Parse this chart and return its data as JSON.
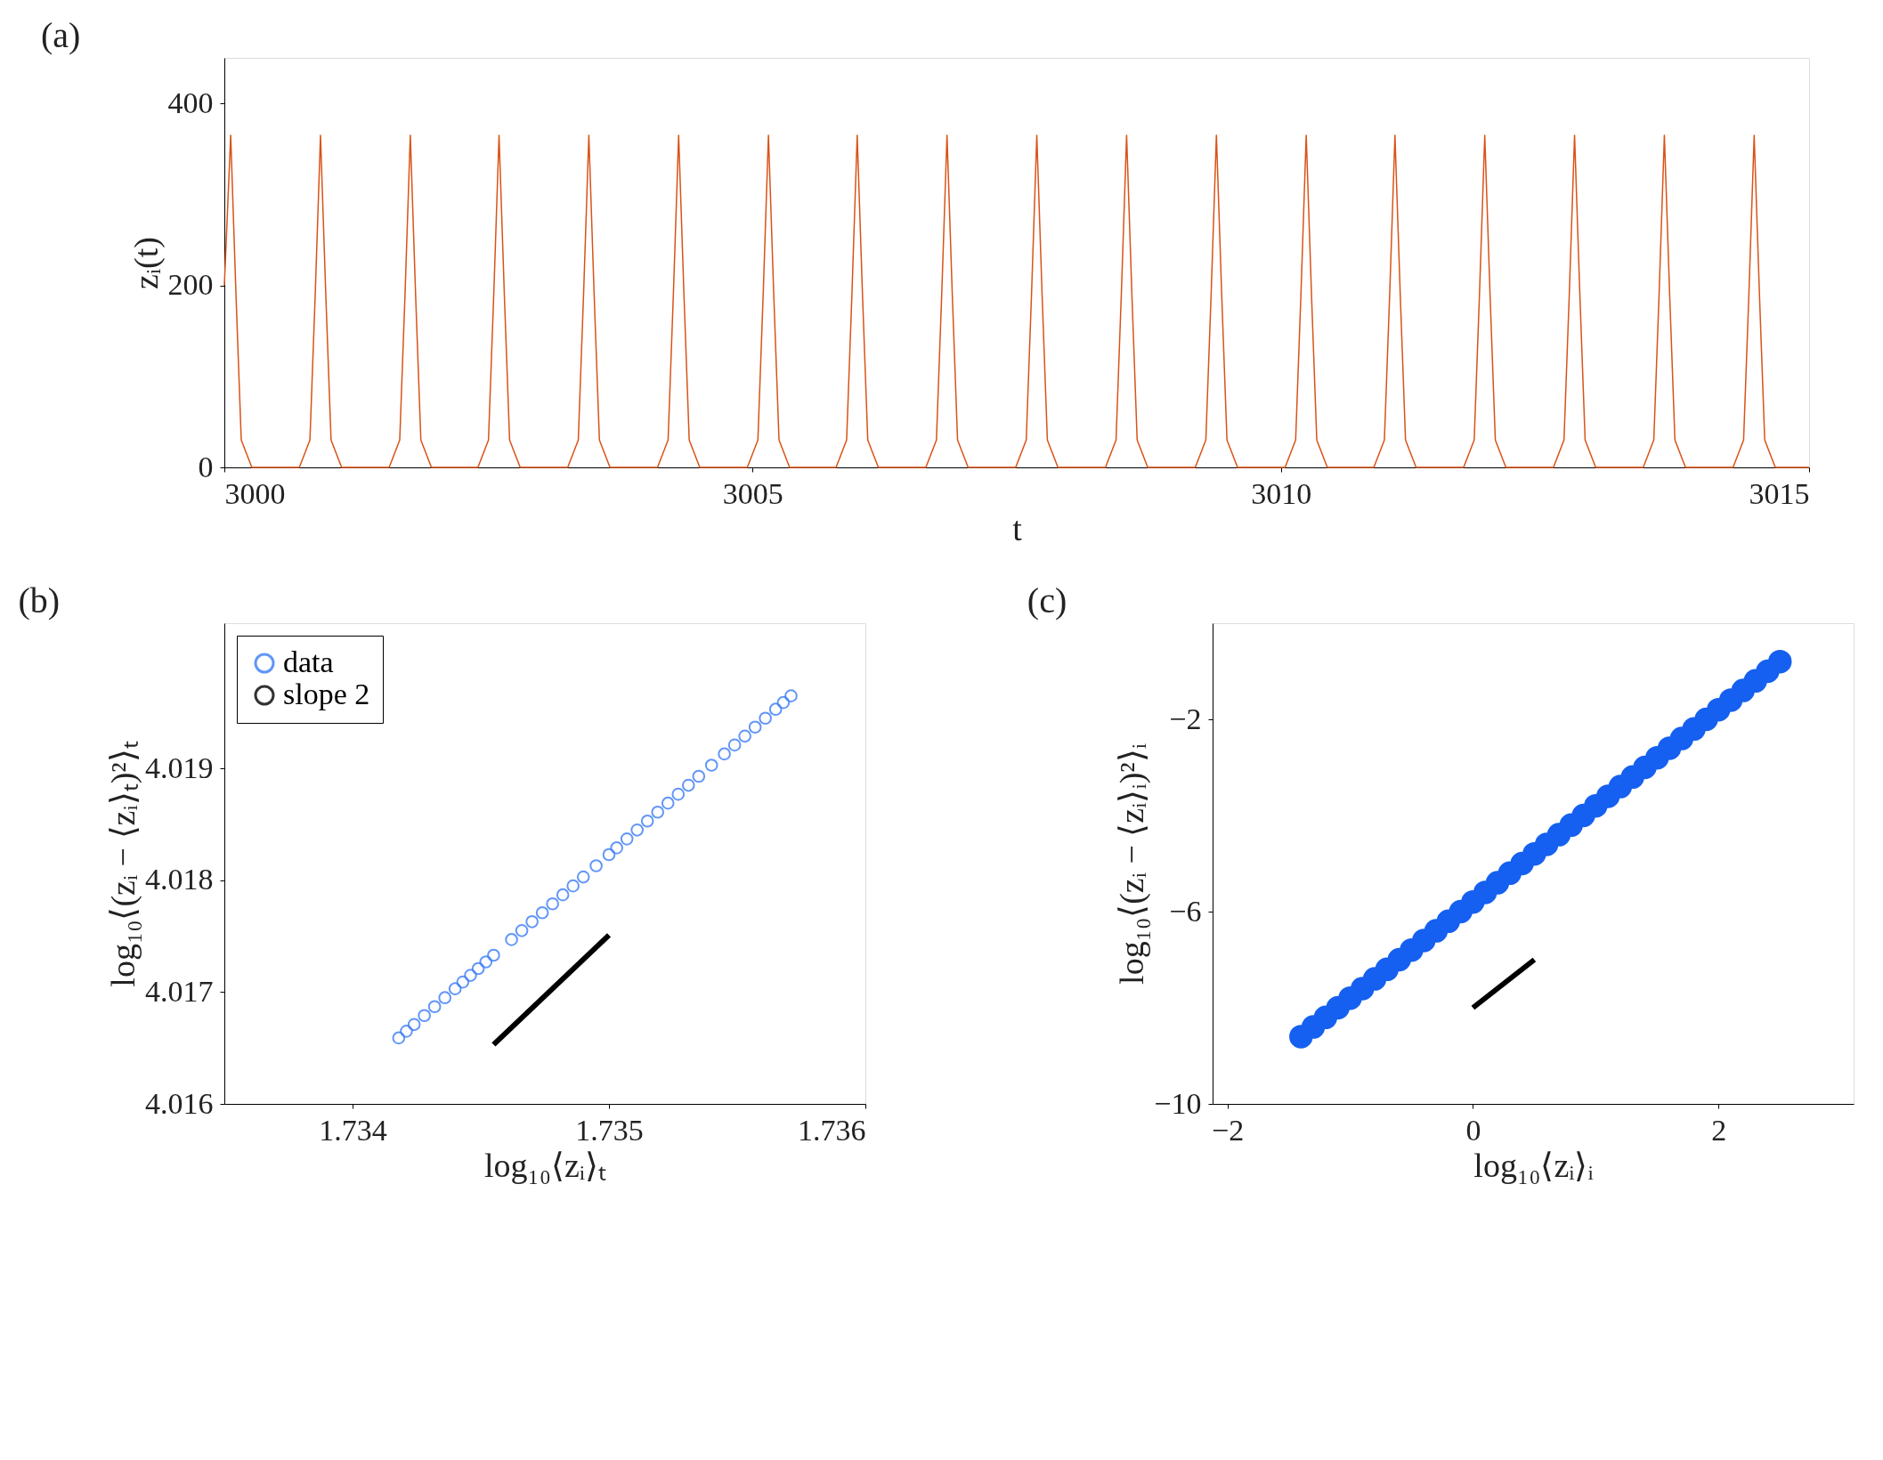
{
  "chart_data": [
    {
      "type": "line",
      "title": "(a)",
      "xlabel": "t",
      "ylabel": "zᵢ(t)",
      "xlim": [
        3000,
        3015
      ],
      "ylim": [
        0,
        450
      ],
      "xticks": [
        3000,
        3005,
        3010,
        3015
      ],
      "yticks": [
        0,
        200,
        400
      ],
      "grid": false,
      "legend": false,
      "series": [
        {
          "color": "#d95319",
          "line_style": "solid",
          "x": [
            3000,
            3000.06,
            3000.11,
            3000.16,
            3000.26,
            3000.71,
            3000.81,
            3000.86,
            3000.91,
            3000.96,
            3001.01,
            3001.11,
            3001.56,
            3001.66,
            3001.71,
            3001.76,
            3001.81,
            3001.86,
            3001.96,
            3002.4,
            3002.5,
            3002.55,
            3002.6,
            3002.65,
            3002.7,
            3002.8,
            3003.25,
            3003.35,
            3003.4,
            3003.45,
            3003.5,
            3003.55,
            3003.65,
            3004.1,
            3004.2,
            3004.25,
            3004.3,
            3004.35,
            3004.4,
            3004.5,
            3004.95,
            3005.05,
            3005.1,
            3005.15,
            3005.2,
            3005.25,
            3005.35,
            3005.79,
            3005.89,
            3005.94,
            3005.99,
            3006.04,
            3006.09,
            3006.19,
            3006.64,
            3006.74,
            3006.79,
            3006.84,
            3006.89,
            3006.94,
            3007.04,
            3007.49,
            3007.59,
            3007.64,
            3007.69,
            3007.74,
            3007.79,
            3007.89,
            3008.34,
            3008.44,
            3008.49,
            3008.54,
            3008.59,
            3008.64,
            3008.74,
            3009.19,
            3009.29,
            3009.34,
            3009.39,
            3009.44,
            3009.49,
            3009.59,
            3010.04,
            3010.14,
            3010.19,
            3010.24,
            3010.29,
            3010.34,
            3010.44,
            3010.88,
            3010.98,
            3011.03,
            3011.08,
            3011.13,
            3011.18,
            3011.28,
            3011.73,
            3011.83,
            3011.88,
            3011.93,
            3011.98,
            3012.03,
            3012.13,
            3012.58,
            3012.68,
            3012.73,
            3012.78,
            3012.83,
            3012.88,
            3012.98,
            3013.43,
            3013.53,
            3013.58,
            3013.63,
            3013.68,
            3013.73,
            3013.83,
            3014.28,
            3014.38,
            3014.43,
            3014.48,
            3014.53,
            3014.58,
            3014.68,
            3015
          ],
          "values": [
            200,
            365,
            190,
            30,
            0,
            0,
            30,
            190,
            365,
            190,
            30,
            0,
            0,
            30,
            190,
            365,
            190,
            30,
            0,
            0,
            30,
            190,
            365,
            190,
            30,
            0,
            0,
            30,
            190,
            365,
            190,
            30,
            0,
            0,
            30,
            190,
            365,
            190,
            30,
            0,
            0,
            30,
            190,
            365,
            190,
            30,
            0,
            0,
            30,
            190,
            365,
            190,
            30,
            0,
            0,
            30,
            190,
            365,
            190,
            30,
            0,
            0,
            30,
            190,
            365,
            190,
            30,
            0,
            0,
            30,
            190,
            365,
            190,
            30,
            0,
            0,
            30,
            190,
            365,
            190,
            30,
            0,
            0,
            30,
            190,
            365,
            190,
            30,
            0,
            0,
            30,
            190,
            365,
            190,
            30,
            0,
            0,
            30,
            190,
            365,
            190,
            30,
            0,
            0,
            30,
            190,
            365,
            190,
            30,
            0,
            0,
            30,
            190,
            365,
            190,
            30,
            0,
            0,
            30,
            190,
            365,
            190,
            30,
            0,
            0
          ]
        }
      ]
    },
    {
      "type": "scatter",
      "title": "(b)",
      "xlabel": "log₁₀⟨zᵢ⟩ₜ",
      "ylabel": "log₁₀⟨(zᵢ − ⟨zᵢ⟩ₜ)²⟩ₜ",
      "xlim": [
        1.7335,
        1.736
      ],
      "ylim": [
        4.016,
        4.0203
      ],
      "xticks": [
        1.734,
        1.735,
        1.736
      ],
      "yticks": [
        4.016,
        4.017,
        4.018,
        4.019
      ],
      "grid": false,
      "legend": "top left",
      "series": [
        {
          "name": "data",
          "color": "#3c7df5",
          "marker": "circle",
          "x": [
            1.73418,
            1.73421,
            1.73424,
            1.73428,
            1.73432,
            1.73436,
            1.7344,
            1.73443,
            1.73446,
            1.73449,
            1.73452,
            1.73455,
            1.73462,
            1.73466,
            1.7347,
            1.73474,
            1.73478,
            1.73482,
            1.73486,
            1.7349,
            1.73495,
            1.735,
            1.73503,
            1.73507,
            1.73511,
            1.73515,
            1.73519,
            1.73523,
            1.73527,
            1.73531,
            1.73535,
            1.7354,
            1.73545,
            1.73549,
            1.73553,
            1.73557,
            1.73561,
            1.73565,
            1.73568,
            1.73571
          ],
          "values": [
            4.01659,
            4.01665,
            4.01671,
            4.01679,
            4.01687,
            4.01695,
            4.01703,
            4.01709,
            4.01715,
            4.01721,
            4.01727,
            4.01733,
            4.01747,
            4.01755,
            4.01763,
            4.01771,
            4.01779,
            4.01787,
            4.01795,
            4.01803,
            4.01813,
            4.01823,
            4.01829,
            4.01837,
            4.01845,
            4.01853,
            4.01861,
            4.01869,
            4.01877,
            4.01885,
            4.01893,
            4.01903,
            4.01913,
            4.01921,
            4.01929,
            4.01937,
            4.01945,
            4.01953,
            4.01959,
            4.01965
          ]
        },
        {
          "name": "slope 2",
          "type": "line",
          "color": "#000000",
          "line_style": "solid",
          "x": [
            1.73455,
            1.735
          ],
          "values": [
            4.01653,
            4.01751
          ]
        }
      ]
    },
    {
      "type": "scatter",
      "title": "(c)",
      "xlabel": "log₁₀⟨zᵢ⟩ᵢ",
      "ylabel": "log₁₀⟨(zᵢ − ⟨zᵢ⟩ᵢ)²⟩ᵢ",
      "xlim": [
        -2.12,
        3.1
      ],
      "ylim": [
        -10,
        0
      ],
      "xticks": [
        -2,
        0,
        2
      ],
      "yticks": [
        -10,
        -6,
        -2
      ],
      "grid": false,
      "legend": false,
      "series": [
        {
          "color": "#1560f0",
          "marker": "circle",
          "x": [
            -1.4,
            -1.3,
            -1.2,
            -1.1,
            -1.0,
            -0.9,
            -0.8,
            -0.7,
            -0.6,
            -0.5,
            -0.4,
            -0.3,
            -0.2,
            -0.1,
            0,
            0.1,
            0.2,
            0.3,
            0.4,
            0.5,
            0.6,
            0.7,
            0.8,
            0.9,
            1.0,
            1.1,
            1.2,
            1.3,
            1.4,
            1.5,
            1.6,
            1.7,
            1.8,
            1.9,
            2.0,
            2.1,
            2.2,
            2.3,
            2.4,
            2.5
          ],
          "values": [
            -8.6,
            -8.4,
            -8.2,
            -8.0,
            -7.8,
            -7.6,
            -7.4,
            -7.2,
            -7.0,
            -6.8,
            -6.6,
            -6.4,
            -6.2,
            -6.0,
            -5.8,
            -5.6,
            -5.4,
            -5.2,
            -5.0,
            -4.8,
            -4.6,
            -4.4,
            -4.2,
            -4.0,
            -3.8,
            -3.6,
            -3.4,
            -3.2,
            -3.0,
            -2.8,
            -2.6,
            -2.4,
            -2.2,
            -2.0,
            -1.8,
            -1.6,
            -1.4,
            -1.2,
            -1.0,
            -0.8
          ]
        },
        {
          "type": "line",
          "color": "#000000",
          "line_style": "solid",
          "x": [
            0,
            0.5
          ],
          "values": [
            -8,
            -7
          ]
        }
      ]
    }
  ]
}
